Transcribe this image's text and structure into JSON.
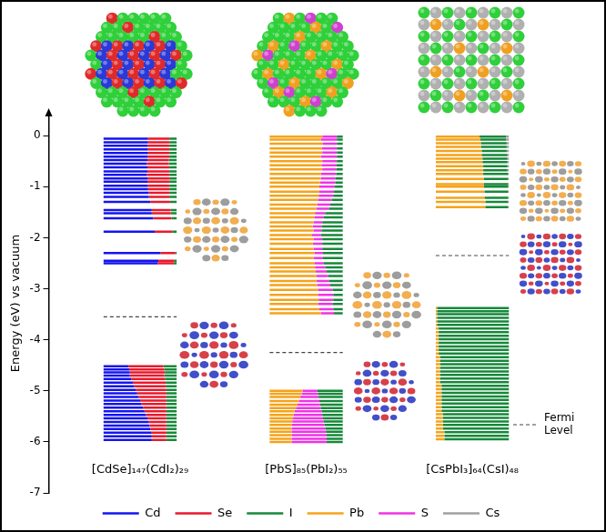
{
  "chart_data": {
    "type": "energy_levels",
    "y_label": "Energy (eV) vs vacuum",
    "ylim": [
      -7,
      0.43
    ],
    "yticks": [
      -7,
      -6,
      -5,
      -4,
      -3,
      -2,
      -1,
      0
    ],
    "grid": false,
    "legend": "bottom",
    "fermi_level_label": "Fermi Level",
    "series": [
      {
        "name": "Cd",
        "color": "#1414f0"
      },
      {
        "name": "Se",
        "color": "#e8192c"
      },
      {
        "name": "I",
        "color": "#16883a"
      },
      {
        "name": "Pb",
        "color": "#f5a31a"
      },
      {
        "name": "S",
        "color": "#f032e6"
      },
      {
        "name": "Cs",
        "color": "#a0a0a0"
      }
    ],
    "systems": [
      {
        "name": "[CdSe]₁₄₇(CdI₂)₂₉",
        "elements": [
          "Cd",
          "Se",
          "I"
        ],
        "fermi_level": -3.55,
        "energies": [
          -2.3,
          -2.45,
          -2.5,
          -1.88,
          -1.62,
          -1.52,
          -1.46,
          -1.3,
          -1.2,
          -1.12,
          -1.05,
          -0.98,
          -0.9,
          -0.84,
          -0.77,
          -0.7,
          -0.62,
          -0.55,
          -0.48,
          -0.41,
          -0.34,
          -0.27,
          -0.2,
          -0.13,
          -0.06,
          -4.52,
          -4.58,
          -4.64,
          -4.7,
          -4.77,
          -4.84,
          -4.91,
          -4.98,
          -5.05,
          -5.12,
          -5.19,
          -5.26,
          -5.33,
          -5.4,
          -5.47,
          -5.54,
          -5.61,
          -5.68,
          -5.75,
          -5.82,
          -5.89,
          -5.96
        ],
        "compositions": [
          [
            0.78,
            0.2,
            0.02
          ],
          [
            0.75,
            0.22,
            0.03
          ],
          [
            0.74,
            0.22,
            0.04
          ],
          [
            0.7,
            0.24,
            0.06
          ],
          [
            0.68,
            0.25,
            0.07
          ],
          [
            0.66,
            0.26,
            0.08
          ],
          [
            0.66,
            0.26,
            0.08
          ],
          [
            0.64,
            0.27,
            0.09
          ],
          [
            0.62,
            0.28,
            0.1
          ],
          [
            0.62,
            0.28,
            0.1
          ],
          [
            0.61,
            0.29,
            0.1
          ],
          [
            0.6,
            0.3,
            0.1
          ],
          [
            0.6,
            0.3,
            0.1
          ],
          [
            0.6,
            0.31,
            0.09
          ],
          [
            0.59,
            0.31,
            0.1
          ],
          [
            0.6,
            0.3,
            0.1
          ],
          [
            0.6,
            0.3,
            0.1
          ],
          [
            0.59,
            0.3,
            0.11
          ],
          [
            0.6,
            0.29,
            0.11
          ],
          [
            0.6,
            0.3,
            0.1
          ],
          [
            0.61,
            0.29,
            0.1
          ],
          [
            0.6,
            0.3,
            0.1
          ],
          [
            0.6,
            0.3,
            0.1
          ],
          [
            0.61,
            0.29,
            0.1
          ],
          [
            0.6,
            0.3,
            0.1
          ],
          [
            0.34,
            0.48,
            0.18
          ],
          [
            0.35,
            0.48,
            0.17
          ],
          [
            0.36,
            0.48,
            0.16
          ],
          [
            0.36,
            0.47,
            0.17
          ],
          [
            0.38,
            0.46,
            0.16
          ],
          [
            0.4,
            0.45,
            0.15
          ],
          [
            0.42,
            0.43,
            0.15
          ],
          [
            0.44,
            0.42,
            0.14
          ],
          [
            0.46,
            0.4,
            0.14
          ],
          [
            0.48,
            0.38,
            0.14
          ],
          [
            0.5,
            0.36,
            0.14
          ],
          [
            0.52,
            0.34,
            0.14
          ],
          [
            0.54,
            0.32,
            0.14
          ],
          [
            0.56,
            0.3,
            0.14
          ],
          [
            0.58,
            0.28,
            0.14
          ],
          [
            0.6,
            0.26,
            0.14
          ],
          [
            0.62,
            0.24,
            0.14
          ],
          [
            0.63,
            0.23,
            0.14
          ],
          [
            0.64,
            0.22,
            0.14
          ],
          [
            0.65,
            0.21,
            0.14
          ],
          [
            0.66,
            0.2,
            0.14
          ],
          [
            0.66,
            0.2,
            0.14
          ]
        ]
      },
      {
        "name": "[PbS]₈₅(PbI₂)₅₅",
        "elements": [
          "Pb",
          "S",
          "I"
        ],
        "fermi_level": -4.25,
        "energies": [
          -0.02,
          -0.08,
          -0.16,
          -0.25,
          -0.33,
          -0.41,
          -0.5,
          -0.58,
          -0.66,
          -0.75,
          -0.84,
          -0.92,
          -1.0,
          -1.1,
          -1.18,
          -1.26,
          -1.35,
          -1.43,
          -1.52,
          -1.6,
          -1.7,
          -1.78,
          -1.86,
          -1.95,
          -2.03,
          -2.12,
          -2.22,
          -2.3,
          -2.4,
          -2.5,
          -2.58,
          -2.66,
          -2.75,
          -2.85,
          -2.93,
          -3.02,
          -3.12,
          -3.22,
          -3.3,
          -3.4,
          -3.48,
          -5.0,
          -5.06,
          -5.12,
          -5.2,
          -5.27,
          -5.34,
          -5.4,
          -5.47,
          -5.54,
          -5.6,
          -5.67,
          -5.74,
          -5.8,
          -5.87,
          -5.94,
          -6.0
        ],
        "compositions": [
          [
            0.72,
            0.2,
            0.08
          ],
          [
            0.7,
            0.22,
            0.08
          ],
          [
            0.73,
            0.19,
            0.08
          ],
          [
            0.71,
            0.21,
            0.08
          ],
          [
            0.72,
            0.2,
            0.08
          ],
          [
            0.7,
            0.22,
            0.08
          ],
          [
            0.72,
            0.2,
            0.08
          ],
          [
            0.71,
            0.2,
            0.09
          ],
          [
            0.72,
            0.19,
            0.09
          ],
          [
            0.7,
            0.21,
            0.09
          ],
          [
            0.7,
            0.2,
            0.1
          ],
          [
            0.69,
            0.21,
            0.1
          ],
          [
            0.68,
            0.21,
            0.11
          ],
          [
            0.68,
            0.2,
            0.12
          ],
          [
            0.67,
            0.2,
            0.13
          ],
          [
            0.66,
            0.19,
            0.15
          ],
          [
            0.65,
            0.18,
            0.17
          ],
          [
            0.64,
            0.17,
            0.19
          ],
          [
            0.62,
            0.14,
            0.24
          ],
          [
            0.61,
            0.13,
            0.26
          ],
          [
            0.6,
            0.12,
            0.28
          ],
          [
            0.59,
            0.12,
            0.29
          ],
          [
            0.6,
            0.11,
            0.29
          ],
          [
            0.58,
            0.12,
            0.3
          ],
          [
            0.6,
            0.12,
            0.28
          ],
          [
            0.59,
            0.13,
            0.28
          ],
          [
            0.6,
            0.12,
            0.28
          ],
          [
            0.61,
            0.12,
            0.27
          ],
          [
            0.6,
            0.13,
            0.27
          ],
          [
            0.61,
            0.13,
            0.26
          ],
          [
            0.62,
            0.14,
            0.24
          ],
          [
            0.63,
            0.15,
            0.22
          ],
          [
            0.64,
            0.16,
            0.2
          ],
          [
            0.64,
            0.17,
            0.19
          ],
          [
            0.65,
            0.18,
            0.17
          ],
          [
            0.66,
            0.2,
            0.14
          ],
          [
            0.66,
            0.21,
            0.13
          ],
          [
            0.67,
            0.2,
            0.13
          ],
          [
            0.66,
            0.2,
            0.14
          ],
          [
            0.68,
            0.19,
            0.13
          ],
          [
            0.7,
            0.18,
            0.12
          ],
          [
            0.45,
            0.2,
            0.35
          ],
          [
            0.44,
            0.22,
            0.34
          ],
          [
            0.42,
            0.25,
            0.33
          ],
          [
            0.4,
            0.28,
            0.32
          ],
          [
            0.38,
            0.31,
            0.31
          ],
          [
            0.36,
            0.34,
            0.3
          ],
          [
            0.34,
            0.37,
            0.29
          ],
          [
            0.33,
            0.39,
            0.28
          ],
          [
            0.32,
            0.41,
            0.27
          ],
          [
            0.31,
            0.43,
            0.26
          ],
          [
            0.3,
            0.45,
            0.25
          ],
          [
            0.3,
            0.46,
            0.24
          ],
          [
            0.3,
            0.47,
            0.23
          ],
          [
            0.3,
            0.48,
            0.22
          ],
          [
            0.3,
            0.48,
            0.22
          ],
          [
            0.3,
            0.48,
            0.22
          ]
        ]
      },
      {
        "name": "[CsPbI₃]₆₄(CsI)₄₈",
        "elements": [
          "Pb",
          "I",
          "Cs"
        ],
        "fermi_level": -2.35,
        "energies": [
          -0.02,
          -0.08,
          -0.15,
          -0.22,
          -0.3,
          -0.38,
          -0.45,
          -0.52,
          -0.6,
          -0.68,
          -0.75,
          -0.85,
          -0.95,
          -1.0,
          -1.1,
          -1.22,
          -1.3,
          -1.4,
          -3.38,
          -3.44,
          -3.5,
          -3.57,
          -3.64,
          -3.71,
          -3.78,
          -3.85,
          -3.92,
          -3.99,
          -4.06,
          -4.13,
          -4.2,
          -4.27,
          -4.34,
          -4.41,
          -4.48,
          -4.55,
          -4.62,
          -4.69,
          -4.76,
          -4.83,
          -4.9,
          -4.97,
          -5.04,
          -5.11,
          -5.18,
          -5.25,
          -5.32,
          -5.39,
          -5.46,
          -5.53,
          -5.6,
          -5.67,
          -5.74,
          -5.81,
          -5.88,
          -5.95
        ],
        "compositions": [
          [
            0.6,
            0.36,
            0.04
          ],
          [
            0.61,
            0.35,
            0.04
          ],
          [
            0.62,
            0.35,
            0.03
          ],
          [
            0.62,
            0.35,
            0.03
          ],
          [
            0.63,
            0.34,
            0.03
          ],
          [
            0.63,
            0.35,
            0.02
          ],
          [
            0.64,
            0.34,
            0.02
          ],
          [
            0.64,
            0.34,
            0.02
          ],
          [
            0.65,
            0.33,
            0.02
          ],
          [
            0.65,
            0.33,
            0.02
          ],
          [
            0.65,
            0.34,
            0.01
          ],
          [
            0.66,
            0.33,
            0.01
          ],
          [
            0.66,
            0.33,
            0.01
          ],
          [
            0.66,
            0.33,
            0.01
          ],
          [
            0.67,
            0.32,
            0.01
          ],
          [
            0.67,
            0.32,
            0.01
          ],
          [
            0.68,
            0.31,
            0.01
          ],
          [
            0.68,
            0.31,
            0.01
          ],
          [
            0.02,
            0.98,
            0
          ],
          [
            0.02,
            0.98,
            0
          ],
          [
            0.02,
            0.98,
            0
          ],
          [
            0.02,
            0.98,
            0
          ],
          [
            0.02,
            0.98,
            0
          ],
          [
            0.02,
            0.98,
            0
          ],
          [
            0.04,
            0.96,
            0
          ],
          [
            0.04,
            0.96,
            0
          ],
          [
            0.04,
            0.96,
            0
          ],
          [
            0.04,
            0.96,
            0
          ],
          [
            0.04,
            0.96,
            0
          ],
          [
            0.04,
            0.96,
            0
          ],
          [
            0.04,
            0.96,
            0
          ],
          [
            0.04,
            0.96,
            0
          ],
          [
            0.06,
            0.94,
            0
          ],
          [
            0.06,
            0.94,
            0
          ],
          [
            0.06,
            0.94,
            0
          ],
          [
            0.06,
            0.94,
            0
          ],
          [
            0.06,
            0.94,
            0
          ],
          [
            0.06,
            0.94,
            0
          ],
          [
            0.06,
            0.94,
            0
          ],
          [
            0.06,
            0.94,
            0
          ],
          [
            0.08,
            0.92,
            0
          ],
          [
            0.08,
            0.92,
            0
          ],
          [
            0.08,
            0.92,
            0
          ],
          [
            0.08,
            0.92,
            0
          ],
          [
            0.08,
            0.92,
            0
          ],
          [
            0.08,
            0.92,
            0
          ],
          [
            0.08,
            0.92,
            0
          ],
          [
            0.08,
            0.92,
            0
          ],
          [
            0.1,
            0.9,
            0
          ],
          [
            0.1,
            0.9,
            0
          ],
          [
            0.1,
            0.9,
            0
          ],
          [
            0.1,
            0.9,
            0
          ],
          [
            0.1,
            0.9,
            0
          ],
          [
            0.12,
            0.88,
            0
          ],
          [
            0.12,
            0.88,
            0
          ],
          [
            0.12,
            0.88,
            0
          ]
        ]
      }
    ]
  }
}
